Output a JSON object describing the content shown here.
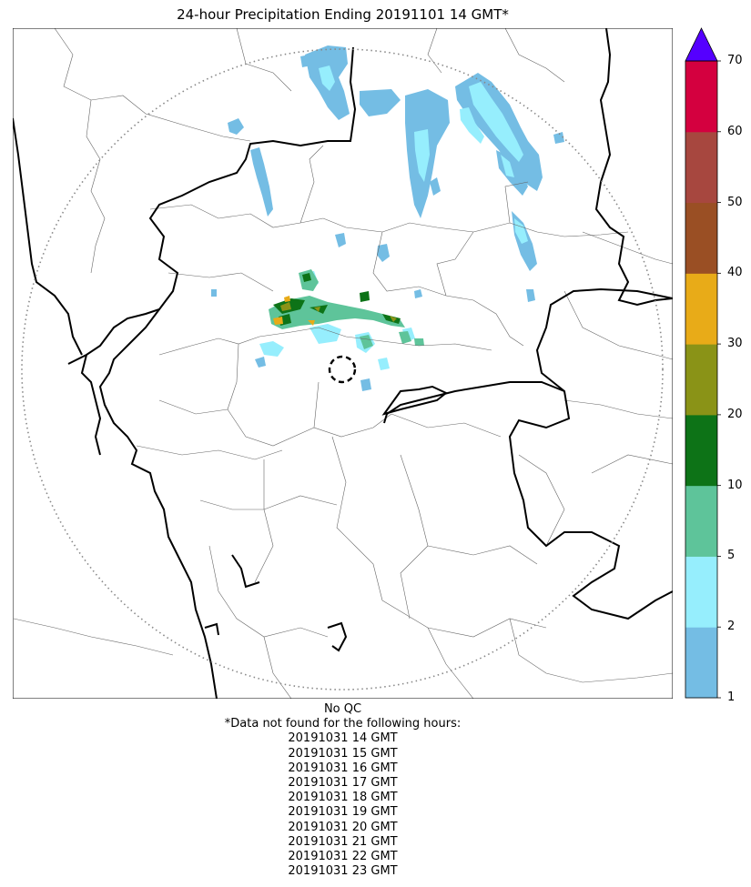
{
  "title": "24-hour Precipitation Ending 20191101 14 GMT*",
  "colorbar": {
    "ticks": [
      "1",
      "2",
      "5",
      "10",
      "20",
      "30",
      "40",
      "50",
      "60",
      "70"
    ],
    "colors": [
      "#74BDE4",
      "#96EEFD",
      "#5EC49A",
      "#0D7317",
      "#8A9317",
      "#E8AB18",
      "#9A4F24",
      "#A7473F",
      "#D4003F"
    ],
    "over_color": "#5500FF"
  },
  "notes": {
    "qc": "No QC",
    "missing_header": "*Data not found for the following hours:",
    "missing_hours": [
      "20191031 14 GMT",
      "20191031 15 GMT",
      "20191031 16 GMT",
      "20191031 17 GMT",
      "20191031 18 GMT",
      "20191031 19 GMT",
      "20191031 20 GMT",
      "20191031 21 GMT",
      "20191031 22 GMT",
      "20191031 23 GMT"
    ]
  }
}
